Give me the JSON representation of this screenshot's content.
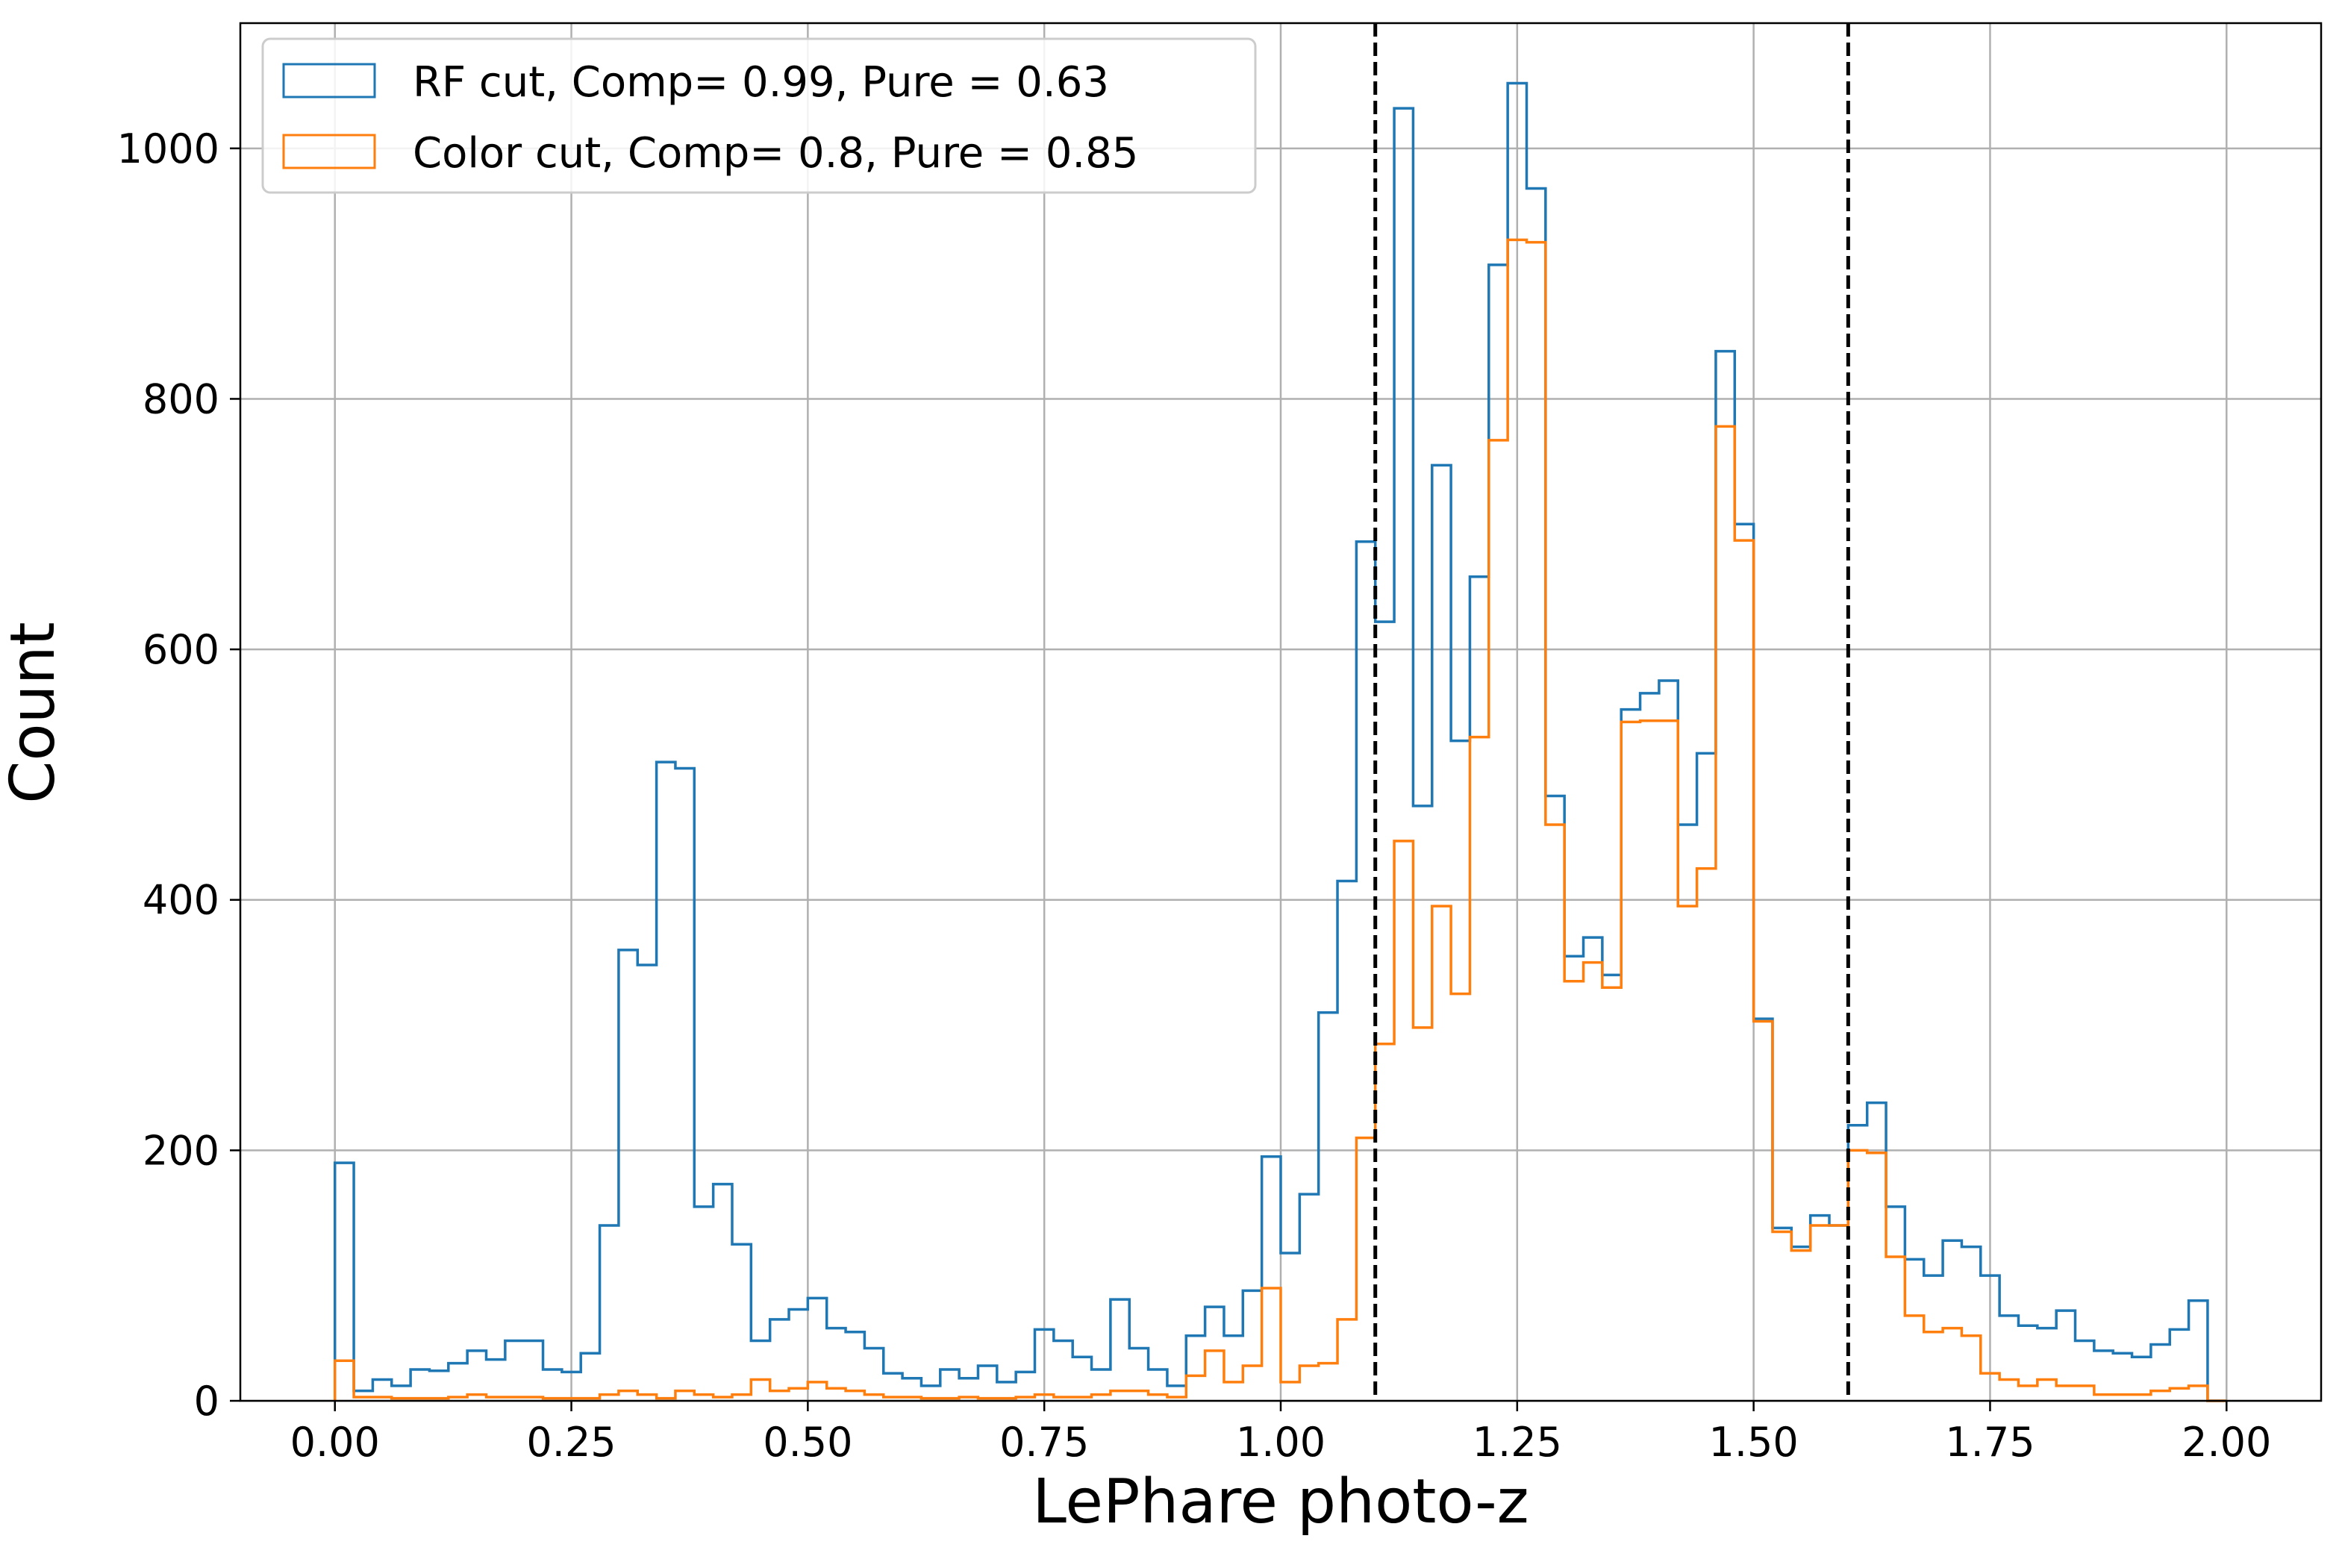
{
  "chart_data": {
    "type": "histogram",
    "xlabel": "LePhare photo-z",
    "ylabel": "Count",
    "xlim": [
      -0.1,
      2.1
    ],
    "ylim": [
      0,
      1100
    ],
    "xticks": [
      0.0,
      0.25,
      0.5,
      0.75,
      1.0,
      1.25,
      1.5,
      1.75,
      2.0
    ],
    "xtick_labels": [
      "0.00",
      "0.25",
      "0.50",
      "0.75",
      "1.00",
      "1.25",
      "1.50",
      "1.75",
      "2.00"
    ],
    "yticks": [
      0,
      200,
      400,
      600,
      800,
      1000
    ],
    "ytick_labels": [
      "0",
      "200",
      "400",
      "600",
      "800",
      "1000"
    ],
    "grid": true,
    "legend_position": "upper-left",
    "bin_range": [
      0.0,
      2.0
    ],
    "bin_width": 0.02,
    "vlines": [
      1.1,
      1.6
    ],
    "series": [
      {
        "name": "RF cut, Comp= 0.99, Pure = 0.63",
        "color": "#1f77b4",
        "counts": [
          190,
          8,
          17,
          12,
          25,
          24,
          30,
          40,
          33,
          48,
          48,
          25,
          23,
          38,
          140,
          360,
          348,
          510,
          505,
          155,
          173,
          125,
          48,
          65,
          73,
          82,
          58,
          55,
          42,
          22,
          18,
          12,
          25,
          18,
          28,
          15,
          23,
          57,
          48,
          35,
          25,
          81,
          42,
          25,
          12,
          52,
          75,
          52,
          88,
          195,
          118,
          165,
          310,
          415,
          686,
          622,
          1032,
          475,
          747,
          527,
          658,
          907,
          1052,
          968,
          483,
          355,
          370,
          340,
          552,
          565,
          575,
          460,
          517,
          838,
          700,
          305,
          138,
          123,
          148,
          140,
          220,
          238,
          155,
          113,
          100,
          128,
          123,
          100,
          68,
          60,
          58,
          72,
          48,
          40,
          38,
          35,
          45,
          57,
          80,
          0
        ]
      },
      {
        "name": "Color cut, Comp= 0.8, Pure = 0.85",
        "color": "#ff7f0e",
        "counts": [
          32,
          3,
          3,
          2,
          2,
          2,
          3,
          5,
          3,
          3,
          3,
          2,
          2,
          2,
          5,
          8,
          5,
          2,
          8,
          5,
          3,
          5,
          17,
          8,
          10,
          15,
          10,
          8,
          5,
          3,
          3,
          2,
          2,
          3,
          2,
          2,
          3,
          5,
          3,
          3,
          5,
          8,
          8,
          5,
          3,
          20,
          40,
          15,
          28,
          90,
          15,
          28,
          30,
          65,
          210,
          285,
          447,
          298,
          395,
          325,
          530,
          767,
          927,
          925,
          460,
          335,
          350,
          330,
          542,
          543,
          543,
          395,
          425,
          778,
          687,
          303,
          135,
          120,
          140,
          140,
          200,
          198,
          115,
          68,
          55,
          58,
          52,
          22,
          17,
          12,
          17,
          12,
          12,
          5,
          5,
          5,
          8,
          10,
          12,
          0
        ]
      }
    ]
  }
}
